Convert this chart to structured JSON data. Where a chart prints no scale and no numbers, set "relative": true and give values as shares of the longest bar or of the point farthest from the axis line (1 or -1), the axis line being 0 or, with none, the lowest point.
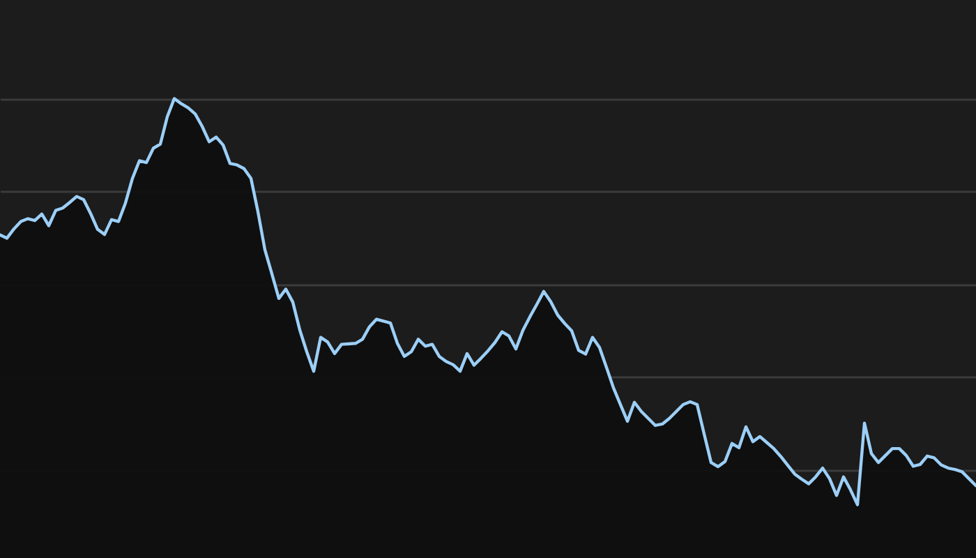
{
  "chart_data": {
    "type": "area",
    "relative": true,
    "grid": true,
    "color": "#9ccff7",
    "categories": [
      null,
      null,
      null,
      null,
      null,
      null,
      null,
      null,
      null,
      null,
      null,
      null,
      null,
      null,
      null,
      null,
      null,
      null,
      null,
      null,
      null,
      null,
      null,
      null,
      null,
      null,
      null,
      null,
      null,
      null,
      null,
      null,
      null,
      null,
      null,
      null,
      null,
      null,
      null,
      null,
      null,
      null,
      null,
      null,
      null,
      null,
      null,
      null,
      null,
      null,
      null,
      null,
      null,
      null,
      null,
      null,
      null,
      null,
      null,
      null,
      null,
      null,
      null,
      null,
      null,
      null,
      null,
      null,
      null,
      null,
      null,
      null,
      null,
      null,
      null,
      null,
      null,
      null,
      null,
      null,
      null,
      null,
      null,
      null,
      null,
      null,
      null,
      null,
      null,
      null,
      null,
      null,
      null,
      null,
      null,
      null,
      null,
      null,
      null,
      null,
      null,
      null,
      null,
      null,
      null,
      null,
      null,
      null,
      null,
      null,
      null,
      null,
      null,
      null,
      null,
      null,
      null,
      null,
      null,
      null,
      null,
      null,
      null,
      null,
      null,
      null,
      null,
      null,
      null,
      null,
      null,
      null,
      null,
      null,
      null,
      null,
      null,
      null,
      null,
      null,
      null
    ],
    "values": [
      0.706,
      0.699,
      0.719,
      0.735,
      0.741,
      0.737,
      0.751,
      0.726,
      0.759,
      0.764,
      0.776,
      0.789,
      0.782,
      0.752,
      0.718,
      0.707,
      0.739,
      0.735,
      0.775,
      0.828,
      0.866,
      0.862,
      0.893,
      0.902,
      0.961,
      1,
      0.989,
      0.98,
      0.967,
      0.94,
      0.907,
      0.917,
      0.9,
      0.86,
      0.857,
      0.849,
      0.828,
      0.756,
      0.674,
      0.622,
      0.569,
      0.589,
      0.561,
      0.501,
      0.454,
      0.412,
      0.485,
      0.475,
      0.45,
      0.47,
      0.471,
      0.472,
      0.481,
      0.508,
      0.524,
      0.52,
      0.516,
      0.472,
      0.444,
      0.454,
      0.481,
      0.466,
      0.47,
      0.444,
      0.433,
      0.426,
      0.412,
      0.45,
      0.425,
      0.44,
      0.456,
      0.474,
      0.497,
      0.488,
      0.46,
      0.5,
      0.529,
      0.556,
      0.584,
      0.562,
      0.533,
      0.515,
      0.499,
      0.457,
      0.449,
      0.485,
      0.463,
      0.42,
      0.376,
      0.34,
      0.304,
      0.345,
      0.325,
      0.31,
      0.295,
      0.298,
      0.31,
      0.325,
      0.34,
      0.346,
      0.34,
      0.277,
      0.215,
      0.206,
      0.217,
      0.256,
      0.247,
      0.292,
      0.26,
      0.271,
      0.258,
      0.245,
      0.228,
      0.209,
      0.19,
      0.179,
      0.169,
      0.184,
      0.203,
      0.18,
      0.144,
      0.184,
      0.156,
      0.124,
      0.3,
      0.234,
      0.215,
      0.23,
      0.245,
      0.245,
      0.23,
      0.207,
      0.211,
      0.229,
      0.225,
      0.21,
      0.203,
      0.2,
      0.195,
      0.18,
      0.165
    ]
  }
}
